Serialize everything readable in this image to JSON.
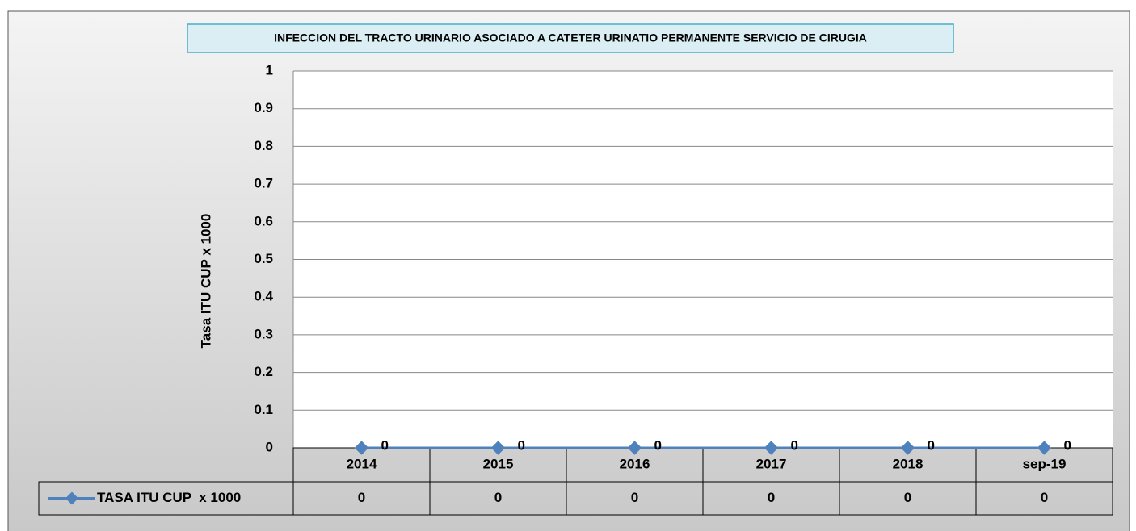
{
  "chart_data": {
    "type": "line",
    "title": "INFECCION DEL TRACTO URINARIO ASOCIADO A CATETER URINATIO PERMANENTE SERVICIO DE CIRUGIA",
    "y_label": "Tasa ITU CUP x 1000",
    "categories": [
      "2014",
      "2015",
      "2016",
      "2017",
      "2018",
      "sep-19"
    ],
    "series": [
      {
        "name": "TASA ITU CUP  x 1000",
        "color": "#4f81bd",
        "values": [
          0,
          0,
          0,
          0,
          0,
          0
        ]
      }
    ],
    "ylim": [
      0,
      1
    ],
    "yticks": [
      0,
      0.1,
      0.2,
      0.3,
      0.4,
      0.5,
      0.6,
      0.7,
      0.8,
      0.9,
      1
    ],
    "grid": true,
    "data_table": true
  }
}
